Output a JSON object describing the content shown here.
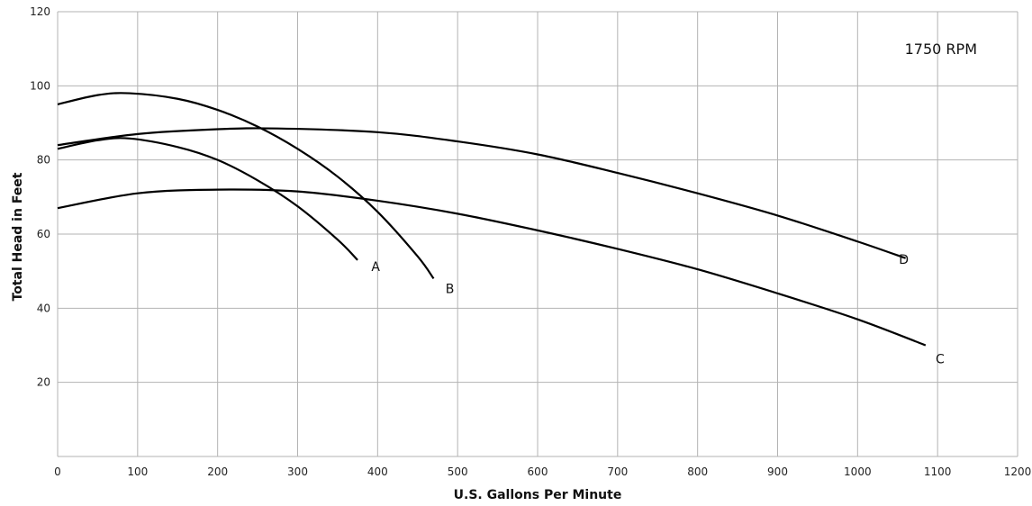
{
  "chart_data": {
    "type": "line",
    "annotation": "1750 RPM",
    "xlabel": "U.S. Gallons Per Minute",
    "ylabel": "Total Head in Feet",
    "xlim": [
      0,
      1200
    ],
    "ylim": [
      0,
      120
    ],
    "x_ticks": [
      "0",
      "100",
      "200",
      "300",
      "400",
      "500",
      "600",
      "700",
      "800",
      "900",
      "1000",
      "1100",
      "1200"
    ],
    "y_ticks": [
      "20",
      "40",
      "60",
      "80",
      "100",
      "120"
    ],
    "grid": true,
    "line_color": "#000000",
    "grid_color": "#b3b3b3",
    "series": [
      {
        "name": "A",
        "x": [
          0,
          50,
          90,
          150,
          200,
          250,
          300,
          350,
          375
        ],
        "y": [
          83,
          85.3,
          85.8,
          83.5,
          80,
          74.5,
          67.5,
          58.5,
          53
        ]
      },
      {
        "name": "B",
        "x": [
          0,
          50,
          90,
          150,
          200,
          250,
          300,
          350,
          400,
          450,
          470
        ],
        "y": [
          95,
          97.5,
          98,
          96.5,
          93.5,
          89,
          83,
          75.5,
          66,
          54,
          48
        ]
      },
      {
        "name": "C",
        "x": [
          0,
          100,
          200,
          300,
          400,
          500,
          600,
          700,
          800,
          900,
          1000,
          1085
        ],
        "y": [
          67,
          71,
          72,
          71.5,
          69,
          65.5,
          61,
          56,
          50.5,
          44,
          37,
          30
        ]
      },
      {
        "name": "D",
        "x": [
          0,
          100,
          200,
          275,
          400,
          500,
          600,
          700,
          800,
          900,
          1000,
          1060
        ],
        "y": [
          84,
          87,
          88.3,
          88.5,
          87.5,
          85,
          81.5,
          76.5,
          71,
          65,
          58,
          53.5
        ]
      }
    ]
  }
}
